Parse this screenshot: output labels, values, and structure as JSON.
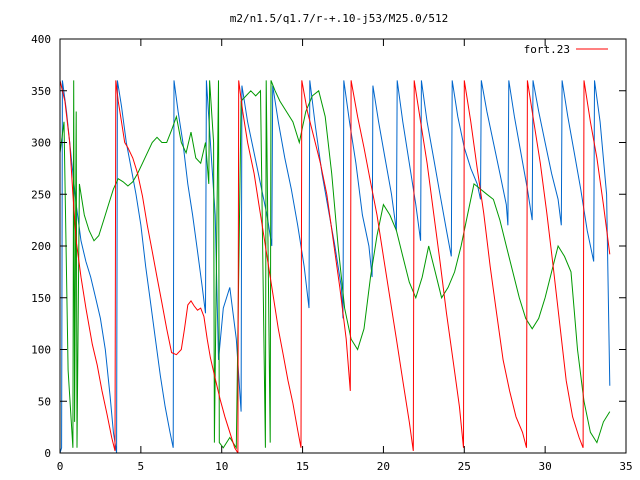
{
  "chart_data": {
    "type": "line",
    "title": "m2/n1.5/q1.7/r-+.10-j53/M25.0/512",
    "xlabel": "",
    "ylabel": "",
    "xlim": [
      0,
      35
    ],
    "ylim": [
      0,
      400
    ],
    "x_ticks": [
      "0",
      "5",
      "10",
      "15",
      "20",
      "25",
      "30",
      "35"
    ],
    "y_ticks": [
      "0",
      "50",
      "100",
      "150",
      "200",
      "250",
      "300",
      "350",
      "400"
    ],
    "grid": false,
    "legend_position": "top-right",
    "series": [
      {
        "name": "fort.23",
        "color": "#ff0000",
        "x": [
          0.0,
          0.3,
          0.6,
          0.8,
          1.0,
          1.3,
          1.6,
          2.0,
          2.3,
          2.6,
          2.9,
          3.2,
          3.4,
          3.45,
          3.6,
          3.8,
          4.0,
          4.2,
          4.5,
          4.8,
          5.1,
          5.4,
          5.7,
          6.0,
          6.3,
          6.6,
          6.9,
          7.2,
          7.5,
          7.7,
          7.9,
          8.1,
          8.3,
          8.5,
          8.7,
          8.9,
          9.1,
          9.3,
          9.6,
          9.9,
          10.2,
          10.5,
          10.8,
          11.0,
          11.05,
          11.3,
          11.6,
          12.0,
          12.3,
          12.6,
          12.9,
          13.2,
          13.5,
          13.8,
          14.1,
          14.4,
          14.7,
          14.9,
          14.95,
          15.3,
          15.7,
          16.1,
          16.5,
          16.9,
          17.3,
          17.7,
          17.95,
          18.0,
          18.4,
          18.8,
          19.2,
          19.6,
          20.0,
          20.4,
          20.8,
          21.2,
          21.6,
          21.85,
          21.9,
          22.3,
          22.7,
          23.1,
          23.5,
          23.9,
          24.3,
          24.7,
          24.95,
          25.0,
          25.4,
          25.8,
          26.2,
          26.6,
          27.0,
          27.4,
          27.8,
          28.2,
          28.6,
          28.85,
          28.9,
          29.3,
          29.7,
          30.1,
          30.5,
          30.9,
          31.3,
          31.7,
          32.1,
          32.35,
          32.4,
          32.8,
          33.2,
          33.6,
          34.0
        ],
        "y": [
          360,
          340,
          300,
          250,
          205,
          170,
          140,
          105,
          85,
          60,
          38,
          15,
          2,
          360,
          340,
          320,
          300,
          295,
          285,
          270,
          248,
          220,
          195,
          170,
          145,
          120,
          97,
          95,
          100,
          120,
          143,
          147,
          142,
          138,
          140,
          132,
          110,
          92,
          72,
          52,
          35,
          20,
          5,
          0,
          360,
          330,
          300,
          270,
          240,
          210,
          180,
          150,
          120,
          95,
          70,
          48,
          22,
          5,
          360,
          330,
          305,
          280,
          250,
          205,
          160,
          110,
          60,
          360,
          325,
          295,
          262,
          230,
          190,
          150,
          110,
          70,
          30,
          2,
          360,
          320,
          280,
          232,
          185,
          135,
          90,
          45,
          5,
          360,
          320,
          275,
          232,
          180,
          135,
          90,
          60,
          35,
          20,
          5,
          360,
          320,
          280,
          232,
          180,
          125,
          70,
          35,
          15,
          5,
          360,
          320,
          285,
          240,
          192
        ]
      },
      {
        "name": "",
        "color": "#0066cc",
        "x": [
          0.0,
          0.1,
          0.15,
          0.4,
          0.7,
          1.0,
          1.3,
          1.6,
          1.9,
          2.2,
          2.5,
          2.8,
          3.1,
          3.3,
          3.5,
          3.55,
          3.8,
          4.1,
          4.4,
          4.7,
          5.0,
          5.3,
          5.6,
          5.9,
          6.2,
          6.5,
          6.8,
          7.0,
          7.05,
          7.3,
          7.6,
          7.9,
          8.2,
          8.5,
          8.8,
          9.0,
          9.05,
          9.3,
          9.6,
          9.8,
          10.1,
          10.5,
          10.9,
          11.2,
          11.25,
          11.6,
          12.0,
          12.4,
          12.8,
          13.1,
          13.15,
          13.5,
          13.9,
          14.3,
          14.7,
          15.1,
          15.4,
          15.45,
          15.8,
          16.2,
          16.6,
          17.0,
          17.4,
          17.5,
          17.55,
          17.9,
          18.3,
          18.7,
          19.1,
          19.3,
          19.35,
          19.7,
          20.1,
          20.5,
          20.8,
          20.85,
          21.2,
          21.6,
          22.0,
          22.3,
          22.35,
          22.7,
          23.1,
          23.5,
          23.9,
          24.2,
          24.25,
          24.6,
          25.0,
          25.4,
          25.8,
          26.0,
          26.05,
          26.4,
          26.8,
          27.2,
          27.6,
          27.7,
          27.75,
          28.1,
          28.5,
          28.9,
          29.2,
          29.25,
          29.6,
          30.0,
          30.4,
          30.8,
          31.0,
          31.05,
          31.4,
          31.8,
          32.2,
          32.6,
          33.0,
          33.05,
          33.4,
          33.8,
          34.0
        ],
        "y": [
          0,
          5,
          360,
          330,
          285,
          240,
          205,
          185,
          170,
          150,
          130,
          100,
          55,
          20,
          0,
          360,
          335,
          300,
          275,
          250,
          220,
          180,
          145,
          110,
          75,
          45,
          20,
          5,
          360,
          330,
          300,
          260,
          230,
          195,
          160,
          135,
          360,
          300,
          230,
          90,
          140,
          160,
          110,
          40,
          355,
          320,
          290,
          260,
          230,
          200,
          355,
          320,
          285,
          255,
          220,
          180,
          140,
          360,
          315,
          270,
          235,
          200,
          160,
          130,
          360,
          320,
          280,
          230,
          200,
          170,
          355,
          320,
          285,
          250,
          215,
          360,
          320,
          280,
          240,
          205,
          360,
          320,
          285,
          250,
          215,
          190,
          360,
          325,
          295,
          275,
          260,
          245,
          360,
          330,
          300,
          270,
          240,
          220,
          360,
          325,
          290,
          255,
          225,
          360,
          330,
          300,
          270,
          245,
          220,
          360,
          325,
          290,
          255,
          215,
          185,
          360,
          320,
          250,
          65
        ]
      },
      {
        "name": "",
        "color": "#009900",
        "x": [
          0.0,
          0.25,
          0.5,
          0.8,
          0.85,
          0.9,
          1.0,
          1.05,
          1.2,
          1.5,
          1.8,
          2.1,
          2.4,
          2.7,
          3.0,
          3.3,
          3.6,
          3.9,
          4.2,
          4.5,
          4.8,
          5.1,
          5.4,
          5.7,
          6.0,
          6.3,
          6.6,
          6.9,
          7.2,
          7.5,
          7.8,
          8.1,
          8.4,
          8.7,
          9.0,
          9.2,
          9.25,
          9.5,
          9.55,
          9.8,
          9.85,
          10.1,
          10.5,
          10.9,
          11.2,
          11.5,
          11.8,
          12.1,
          12.4,
          12.7,
          12.75,
          13.0,
          13.05,
          13.3,
          13.6,
          14.0,
          14.4,
          14.8,
          15.2,
          15.6,
          16.0,
          16.4,
          16.8,
          17.2,
          17.6,
          18.0,
          18.4,
          18.8,
          19.2,
          19.6,
          20.0,
          20.4,
          20.8,
          21.2,
          21.6,
          22.0,
          22.4,
          22.8,
          23.2,
          23.6,
          24.0,
          24.4,
          24.8,
          25.2,
          25.6,
          26.0,
          26.4,
          26.8,
          27.2,
          27.6,
          28.0,
          28.4,
          28.8,
          29.2,
          29.6,
          30.0,
          30.4,
          30.8,
          31.2,
          31.6,
          32.0,
          32.4,
          32.8,
          33.2,
          33.6,
          34.0
        ],
        "y": [
          290,
          320,
          80,
          5,
          360,
          30,
          330,
          5,
          260,
          230,
          215,
          205,
          210,
          225,
          240,
          255,
          265,
          262,
          258,
          262,
          270,
          280,
          290,
          300,
          305,
          300,
          300,
          312,
          325,
          300,
          290,
          310,
          285,
          280,
          300,
          260,
          360,
          300,
          10,
          360,
          10,
          5,
          15,
          5,
          340,
          345,
          350,
          345,
          350,
          5,
          360,
          10,
          360,
          350,
          340,
          330,
          320,
          300,
          330,
          345,
          350,
          325,
          270,
          200,
          140,
          110,
          100,
          120,
          170,
          210,
          240,
          230,
          215,
          190,
          165,
          150,
          170,
          200,
          175,
          150,
          160,
          175,
          200,
          230,
          260,
          255,
          250,
          245,
          225,
          200,
          175,
          150,
          130,
          120,
          130,
          150,
          175,
          200,
          190,
          175,
          100,
          50,
          20,
          10,
          30,
          40
        ]
      }
    ]
  }
}
